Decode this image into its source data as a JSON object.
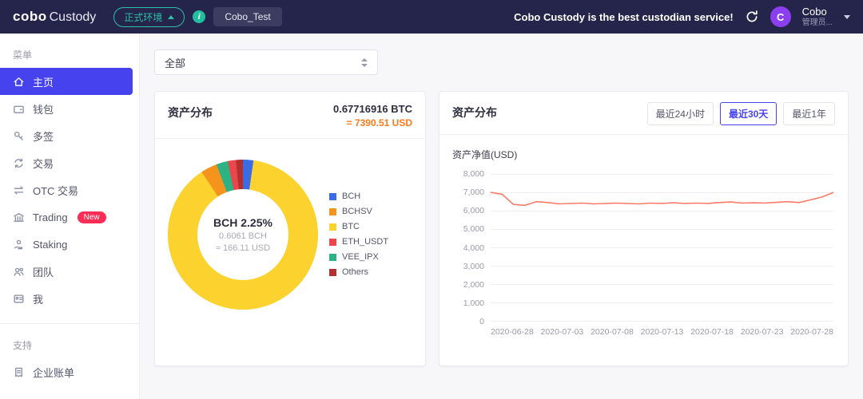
{
  "topbar": {
    "logo_cobo": "cobo",
    "logo_custody": "Custody",
    "env_pill": "正式环境",
    "org_pill": "Cobo_Test",
    "banner": "Cobo Custody is the best custodian service!",
    "avatar_letter": "C",
    "user_name": "Cobo",
    "user_role": "管理员..."
  },
  "sidebar": {
    "menu_label": "菜单",
    "support_label": "支持",
    "items": [
      {
        "label": "主页",
        "icon": "home",
        "active": true
      },
      {
        "label": "钱包",
        "icon": "wallet"
      },
      {
        "label": "多签",
        "icon": "key"
      },
      {
        "label": "交易",
        "icon": "exchange"
      },
      {
        "label": "OTC 交易",
        "icon": "otc"
      },
      {
        "label": "Trading",
        "icon": "bank",
        "badge": "New"
      },
      {
        "label": "Staking",
        "icon": "staking"
      },
      {
        "label": "团队",
        "icon": "team"
      },
      {
        "label": "我",
        "icon": "me"
      }
    ],
    "support_items": [
      {
        "label": "企业账单",
        "icon": "invoice"
      }
    ]
  },
  "filter": {
    "selected": "全部"
  },
  "donut_card": {
    "title": "资产分布",
    "total_btc": "0.67716916 BTC",
    "total_usd": "= 7390.51 USD",
    "center_title": "BCH 2.25%",
    "center_line1": "0.6061 BCH",
    "center_line2": "≈ 166.11 USD"
  },
  "line_card": {
    "title": "资产分布",
    "range_buttons": [
      {
        "label": "最近24小时",
        "active": false
      },
      {
        "label": "最近30天",
        "active": true
      },
      {
        "label": "最近1年",
        "active": false
      }
    ],
    "y_label": "资产净值(USD)"
  },
  "chart_data": [
    {
      "type": "pie",
      "title": "资产分布",
      "center_label": "BCH 2.25%",
      "slices": [
        {
          "name": "BCH",
          "value": 2.25,
          "color": "#3b6ce5"
        },
        {
          "name": "BTC",
          "value": 88.5,
          "color": "#fcd22e"
        },
        {
          "name": "BCHSV",
          "value": 3.5,
          "color": "#f5941d"
        },
        {
          "name": "VEE_IPX",
          "value": 2.5,
          "color": "#2cb283"
        },
        {
          "name": "ETH_USDT",
          "value": 1.75,
          "color": "#e9474c"
        },
        {
          "name": "Others",
          "value": 1.5,
          "color": "#b23130"
        }
      ],
      "legend": [
        {
          "name": "BCH",
          "color": "#3b6ce5"
        },
        {
          "name": "BCHSV",
          "color": "#f5941d"
        },
        {
          "name": "BTC",
          "color": "#fcd22e"
        },
        {
          "name": "ETH_USDT",
          "color": "#e9474c"
        },
        {
          "name": "VEE_IPX",
          "color": "#2cb283"
        },
        {
          "name": "Others",
          "color": "#b23130"
        }
      ],
      "legend_position": "right"
    },
    {
      "type": "line",
      "title": "资产净值(USD)",
      "color": "#fc7a67",
      "grid": true,
      "ylim": [
        0,
        8000
      ],
      "y_ticks": [
        "8,000",
        "7,000",
        "6,000",
        "5,000",
        "4,000",
        "3,000",
        "2,000",
        "1,000",
        "0"
      ],
      "x_ticks": [
        "2020-06-28",
        "2020-07-03",
        "2020-07-08",
        "2020-07-13",
        "2020-07-18",
        "2020-07-23",
        "2020-07-28"
      ],
      "values": [
        7000,
        6900,
        6350,
        6300,
        6500,
        6450,
        6380,
        6400,
        6420,
        6380,
        6400,
        6420,
        6400,
        6380,
        6420,
        6400,
        6440,
        6400,
        6420,
        6400,
        6450,
        6480,
        6420,
        6440,
        6420,
        6460,
        6500,
        6450,
        6600,
        6750,
        7000
      ]
    }
  ]
}
